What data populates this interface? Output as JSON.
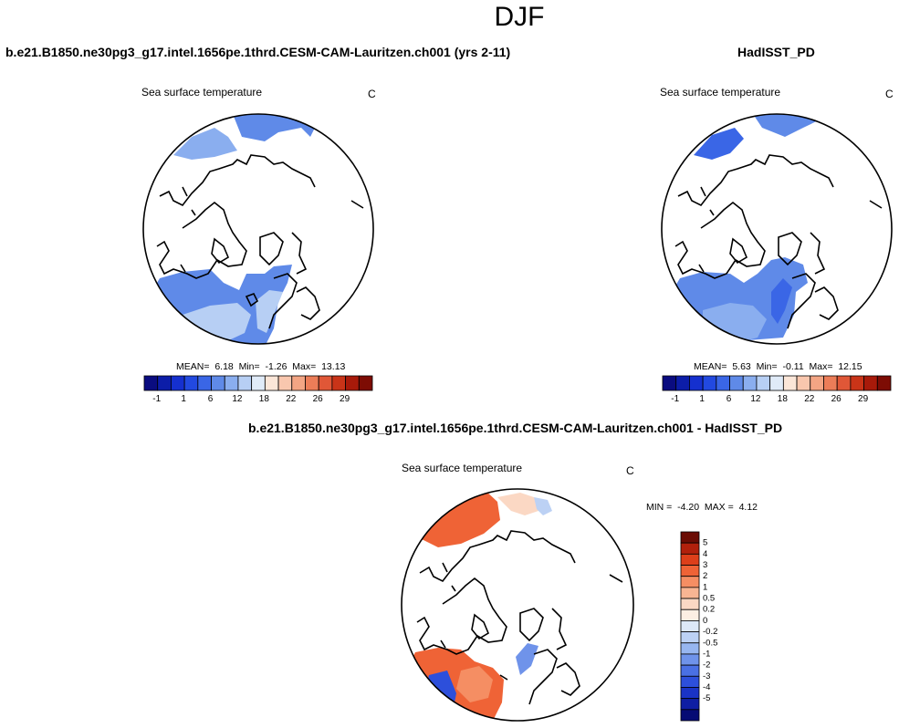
{
  "season_title": "DJF",
  "panels": {
    "top_left": {
      "case_title": "b.e21.B1850.ne30pg3_g17.intel.1656pe.1thrd.CESM-CAM-Lauritzen.ch001 (yrs 2-11)",
      "variable": "Sea surface temperature",
      "units": "C",
      "stats": {
        "mean_label": "MEAN=",
        "mean": "6.18",
        "min_label": "Min=",
        "min": "-1.26",
        "max_label": "Max=",
        "max": "13.13"
      }
    },
    "top_right": {
      "case_title": "HadISST_PD",
      "variable": "Sea surface temperature",
      "units": "C",
      "stats": {
        "mean_label": "MEAN=",
        "mean": "5.63",
        "min_label": "Min=",
        "min": "-0.11",
        "max_label": "Max=",
        "max": "12.15"
      }
    },
    "bottom": {
      "case_title": "b.e21.B1850.ne30pg3_g17.intel.1656pe.1thrd.CESM-CAM-Lauritzen.ch001 - HadISST_PD",
      "variable": "Sea surface temperature",
      "units": "C",
      "stats": {
        "min_label": "MIN =",
        "min": "-4.20",
        "max_label": "MAX =",
        "max": "4.12"
      }
    }
  },
  "colorbar_abs": {
    "colors": [
      "#0a0c80",
      "#0c1da8",
      "#1530cf",
      "#2249e0",
      "#3a66e6",
      "#5f8ae8",
      "#8aaeef",
      "#b7cff4",
      "#e0ebf8",
      "#fbe6d8",
      "#f9c7ae",
      "#f3a584",
      "#ec7d58",
      "#e05737",
      "#c93418",
      "#a81a0a",
      "#7d0c04"
    ],
    "tick_labels": [
      "-1",
      "1",
      "6",
      "12",
      "18",
      "22",
      "26",
      "29"
    ]
  },
  "colorbar_diff": {
    "colors": [
      "#6b0c04",
      "#b1200c",
      "#dd3f1a",
      "#ef6336",
      "#f58e63",
      "#f8b593",
      "#fbd8c4",
      "#fcefe3",
      "#dde8f7",
      "#bcd1f4",
      "#97b6f0",
      "#6f93ea",
      "#4a70e4",
      "#2d4fdb",
      "#1a33c6",
      "#0f1ea3",
      "#060b74"
    ],
    "tick_labels": [
      "5",
      "4",
      "3",
      "2",
      "1",
      "0.5",
      "0.2",
      "0",
      "-0.2",
      "-0.5",
      "-1",
      "-2",
      "-3",
      "-4",
      "-5"
    ]
  },
  "map_colors": {
    "abs_light": "#b7cff4",
    "abs_mid": "#8aaeef",
    "abs_strong": "#5f8ae8",
    "abs_deep": "#3a66e6",
    "diff_pos_strong": "#ef6336",
    "diff_pos_mid": "#f58e63",
    "diff_pos_light": "#fbd8c4",
    "diff_neg_light": "#bcd1f4",
    "diff_neg_mid": "#6f93ea",
    "diff_neg_strong": "#2d4fdb"
  }
}
